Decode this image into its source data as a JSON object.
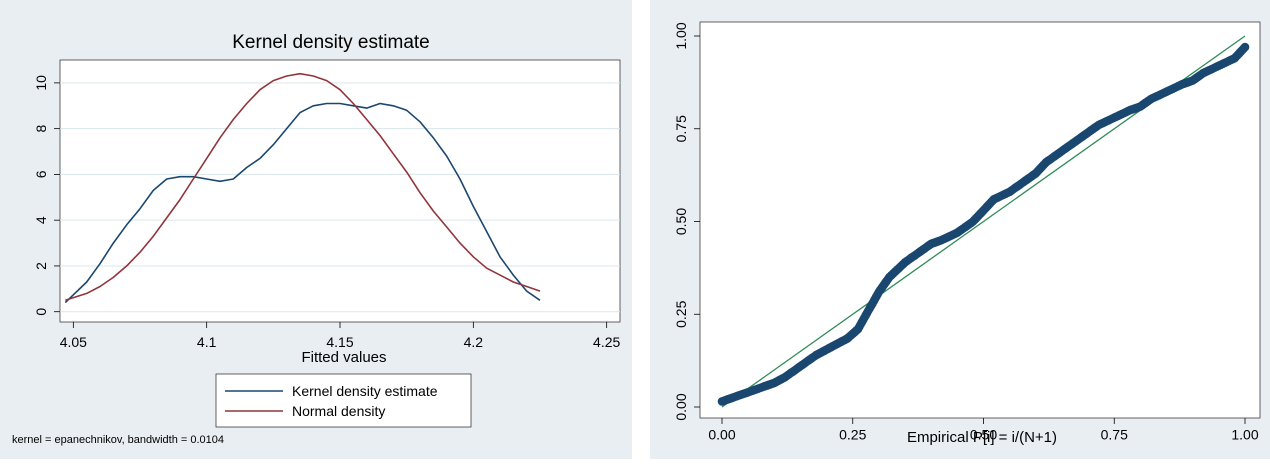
{
  "chart_data": [
    {
      "type": "line",
      "title": "Kernel density estimate",
      "xlabel": "Fitted values",
      "ylabel": "",
      "xlim": [
        4.05,
        4.25
      ],
      "ylim": [
        0,
        10.5
      ],
      "x_ticks": [
        "4.05",
        "4.1",
        "4.15",
        "4.2",
        "4.25"
      ],
      "y_ticks": [
        "0",
        "2",
        "4",
        "6",
        "8",
        "10"
      ],
      "grid": "horizontal",
      "legend_position": "bottom-center",
      "note": "kernel = epanechnikov, bandwidth = 0.0104",
      "series": [
        {
          "name": "Kernel density estimate",
          "color": "#1a476f",
          "x": [
            4.047,
            4.055,
            4.06,
            4.065,
            4.07,
            4.075,
            4.08,
            4.085,
            4.09,
            4.095,
            4.1,
            4.105,
            4.11,
            4.115,
            4.12,
            4.125,
            4.13,
            4.135,
            4.14,
            4.145,
            4.15,
            4.155,
            4.16,
            4.165,
            4.17,
            4.175,
            4.18,
            4.185,
            4.19,
            4.195,
            4.2,
            4.205,
            4.21,
            4.215,
            4.22,
            4.225
          ],
          "y": [
            0.4,
            1.3,
            2.1,
            3.0,
            3.8,
            4.5,
            5.3,
            5.8,
            5.9,
            5.9,
            5.8,
            5.7,
            5.8,
            6.3,
            6.7,
            7.3,
            8.0,
            8.7,
            9.0,
            9.1,
            9.1,
            9.0,
            8.9,
            9.1,
            9.0,
            8.8,
            8.3,
            7.6,
            6.8,
            5.8,
            4.6,
            3.5,
            2.4,
            1.6,
            0.9,
            0.5
          ]
        },
        {
          "name": "Normal density",
          "color": "#90353b",
          "x": [
            4.047,
            4.055,
            4.06,
            4.065,
            4.07,
            4.075,
            4.08,
            4.085,
            4.09,
            4.095,
            4.1,
            4.105,
            4.11,
            4.115,
            4.12,
            4.125,
            4.13,
            4.135,
            4.14,
            4.145,
            4.15,
            4.155,
            4.16,
            4.165,
            4.17,
            4.175,
            4.18,
            4.185,
            4.19,
            4.195,
            4.2,
            4.205,
            4.21,
            4.215,
            4.22,
            4.225
          ],
          "y": [
            0.5,
            0.8,
            1.1,
            1.5,
            2.0,
            2.6,
            3.3,
            4.1,
            4.9,
            5.8,
            6.7,
            7.6,
            8.4,
            9.1,
            9.7,
            10.1,
            10.3,
            10.4,
            10.3,
            10.1,
            9.7,
            9.1,
            8.4,
            7.7,
            6.9,
            6.1,
            5.2,
            4.4,
            3.7,
            3.0,
            2.4,
            1.9,
            1.6,
            1.3,
            1.1,
            0.9
          ]
        }
      ]
    },
    {
      "type": "scatter",
      "title": "",
      "xlabel": "Empirical P[i] = i/(N+1)",
      "ylabel": "",
      "xlim": [
        0,
        1
      ],
      "ylim": [
        0,
        1
      ],
      "x_ticks": [
        "0.00",
        "0.25",
        "0.50",
        "0.75",
        "1.00"
      ],
      "y_ticks": [
        "0.00",
        "0.25",
        "0.50",
        "0.75",
        "1.00"
      ],
      "grid": "none",
      "reference_line": {
        "x": [
          0,
          1
        ],
        "y": [
          0,
          1
        ],
        "color": "#2e8b57"
      },
      "series": [
        {
          "color": "#1a476f",
          "x": [
            0.0,
            0.02,
            0.05,
            0.08,
            0.1,
            0.12,
            0.15,
            0.18,
            0.2,
            0.22,
            0.24,
            0.26,
            0.28,
            0.3,
            0.32,
            0.35,
            0.38,
            0.4,
            0.42,
            0.45,
            0.48,
            0.5,
            0.52,
            0.55,
            0.58,
            0.6,
            0.62,
            0.65,
            0.68,
            0.7,
            0.72,
            0.75,
            0.78,
            0.8,
            0.82,
            0.85,
            0.88,
            0.9,
            0.92,
            0.95,
            0.98,
            1.0
          ],
          "y": [
            0.015,
            0.025,
            0.04,
            0.055,
            0.065,
            0.08,
            0.11,
            0.14,
            0.155,
            0.17,
            0.185,
            0.21,
            0.26,
            0.31,
            0.35,
            0.39,
            0.42,
            0.44,
            0.45,
            0.47,
            0.5,
            0.53,
            0.56,
            0.58,
            0.61,
            0.63,
            0.66,
            0.69,
            0.72,
            0.74,
            0.76,
            0.78,
            0.8,
            0.81,
            0.83,
            0.85,
            0.87,
            0.88,
            0.9,
            0.92,
            0.94,
            0.97
          ]
        }
      ]
    }
  ]
}
